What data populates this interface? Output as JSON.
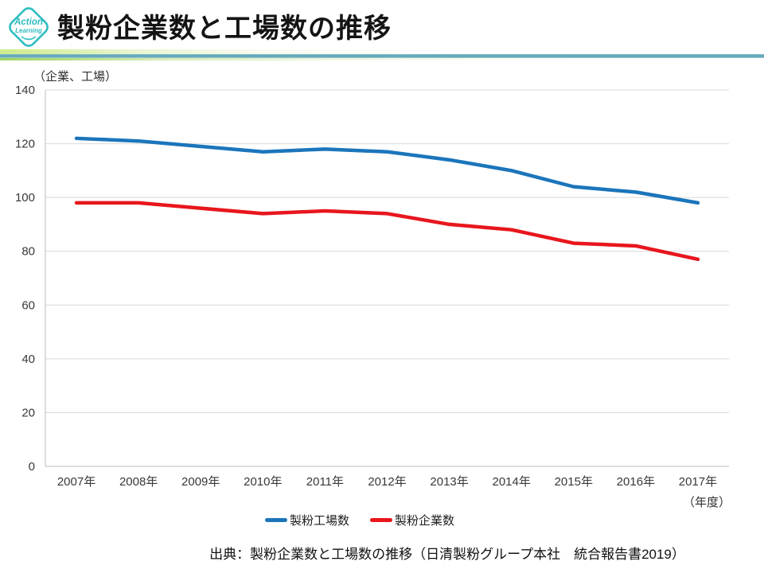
{
  "header": {
    "logo": {
      "line1": "Action",
      "line2": "Learning"
    },
    "title": "製粉企業数と工場数の推移"
  },
  "chart": {
    "y_unit_label": "（企業、工場）",
    "x_unit_label": "（年度）"
  },
  "chart_data": {
    "type": "line",
    "title": "製粉企業数と工場数の推移",
    "categories": [
      "2007年",
      "2008年",
      "2009年",
      "2010年",
      "2011年",
      "2012年",
      "2013年",
      "2014年",
      "2015年",
      "2016年",
      "2017年"
    ],
    "series": [
      {
        "name": "製粉工場数",
        "color": "#1B75BB",
        "values": [
          122,
          121,
          119,
          117,
          118,
          117,
          114,
          110,
          104,
          102,
          98
        ]
      },
      {
        "name": "製粉企業数",
        "color": "#E8161D",
        "values": [
          98,
          98,
          96,
          94,
          95,
          94,
          90,
          88,
          83,
          82,
          77
        ]
      }
    ],
    "ylabel": "（企業、工場）",
    "xlabel": "（年度）",
    "ylim": [
      0,
      140
    ],
    "ytick_step": 20,
    "grid": true,
    "legend_position": "bottom",
    "grid_color": "#D9D9D9",
    "axis_color": "#BFBFBF",
    "tick_label_color": "#383838"
  },
  "footer": {
    "source": "出典：製粉企業数と工場数の推移（日清製粉グループ本社　統合報告書2019）"
  },
  "logo_color": "#2EBDC0"
}
